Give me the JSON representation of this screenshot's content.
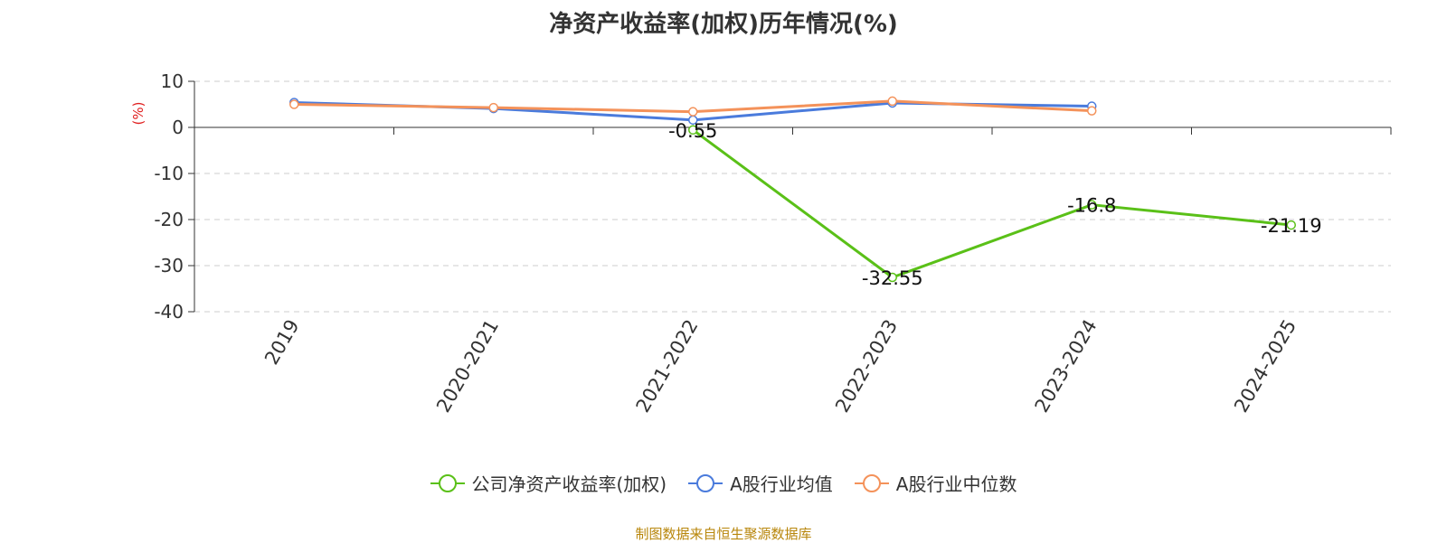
{
  "title": "净资产收益率(加权)历年情况(%)",
  "source": "制图数据来自恒生聚源数据库",
  "chart_data": {
    "type": "line",
    "title": "净资产收益率(加权)历年情况(%)",
    "ylabel": "(%)",
    "xlabel": "",
    "ylim": [
      -40,
      10
    ],
    "yticks": [
      10,
      0,
      -10,
      -20,
      -30,
      -40
    ],
    "grid": true,
    "legend_position": "bottom-center",
    "categories": [
      "2019",
      "2020-2021",
      "2021-2022",
      "2022-2023",
      "2023-2024",
      "2024-2025"
    ],
    "series": [
      {
        "name": "公司净资产收益率(加权)",
        "color": "#5ac018",
        "values": [
          null,
          null,
          -0.55,
          -32.55,
          -16.8,
          -21.19
        ],
        "labels": [
          "",
          "",
          "-0.55",
          "-32.55",
          "-16.8",
          "-21.19"
        ]
      },
      {
        "name": "A股行业均值",
        "color": "#4a7bdc",
        "values": [
          5.4,
          4.1,
          1.6,
          5.3,
          4.6,
          null
        ]
      },
      {
        "name": "A股行业中位数",
        "color": "#f4925a",
        "values": [
          5.0,
          4.3,
          3.4,
          5.7,
          3.6,
          null
        ]
      }
    ]
  }
}
